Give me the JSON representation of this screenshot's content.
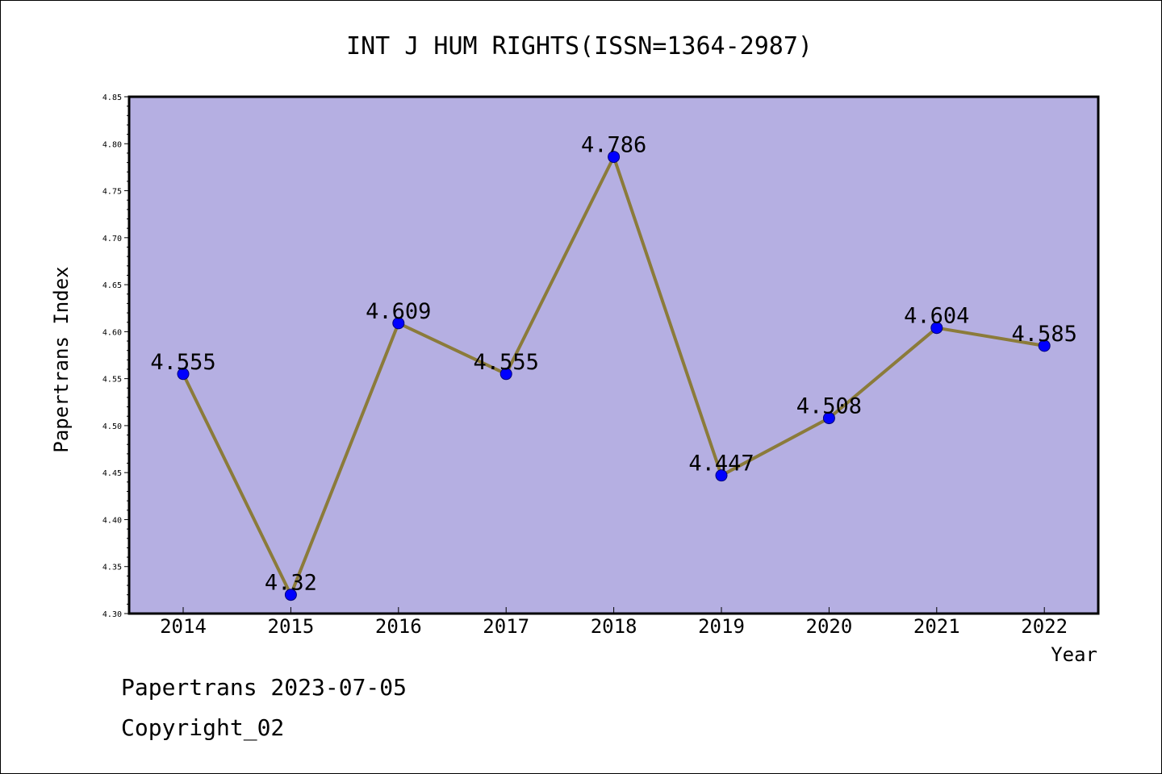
{
  "colors": {
    "plot_bg": "#b5afe2",
    "line": "#8b7b3a",
    "marker": "#0000ff",
    "marker_edge": "#00007a"
  },
  "chart_data": {
    "type": "line",
    "title": "INT J HUM RIGHTS(ISSN=1364-2987)",
    "xlabel": "Year",
    "ylabel": "Papertrans Index",
    "categories": [
      "2014",
      "2015",
      "2016",
      "2017",
      "2018",
      "2019",
      "2020",
      "2021",
      "2022"
    ],
    "values": [
      4.555,
      4.32,
      4.609,
      4.555,
      4.786,
      4.447,
      4.508,
      4.604,
      4.585
    ],
    "data_labels": [
      "4.555",
      "4.32",
      "4.609",
      "4.555",
      "4.786",
      "4.447",
      "4.508",
      "4.604",
      "4.585"
    ],
    "ylim": [
      4.3,
      4.85
    ],
    "yticks": [
      "4.30",
      "4.35",
      "4.40",
      "4.45",
      "4.50",
      "4.55",
      "4.60",
      "4.65",
      "4.70",
      "4.75",
      "4.80",
      "4.85"
    ],
    "grid": false,
    "legend": "none"
  },
  "footer": {
    "date_line": "Papertrans 2023-07-05",
    "copyright_line": "Copyright_02"
  }
}
